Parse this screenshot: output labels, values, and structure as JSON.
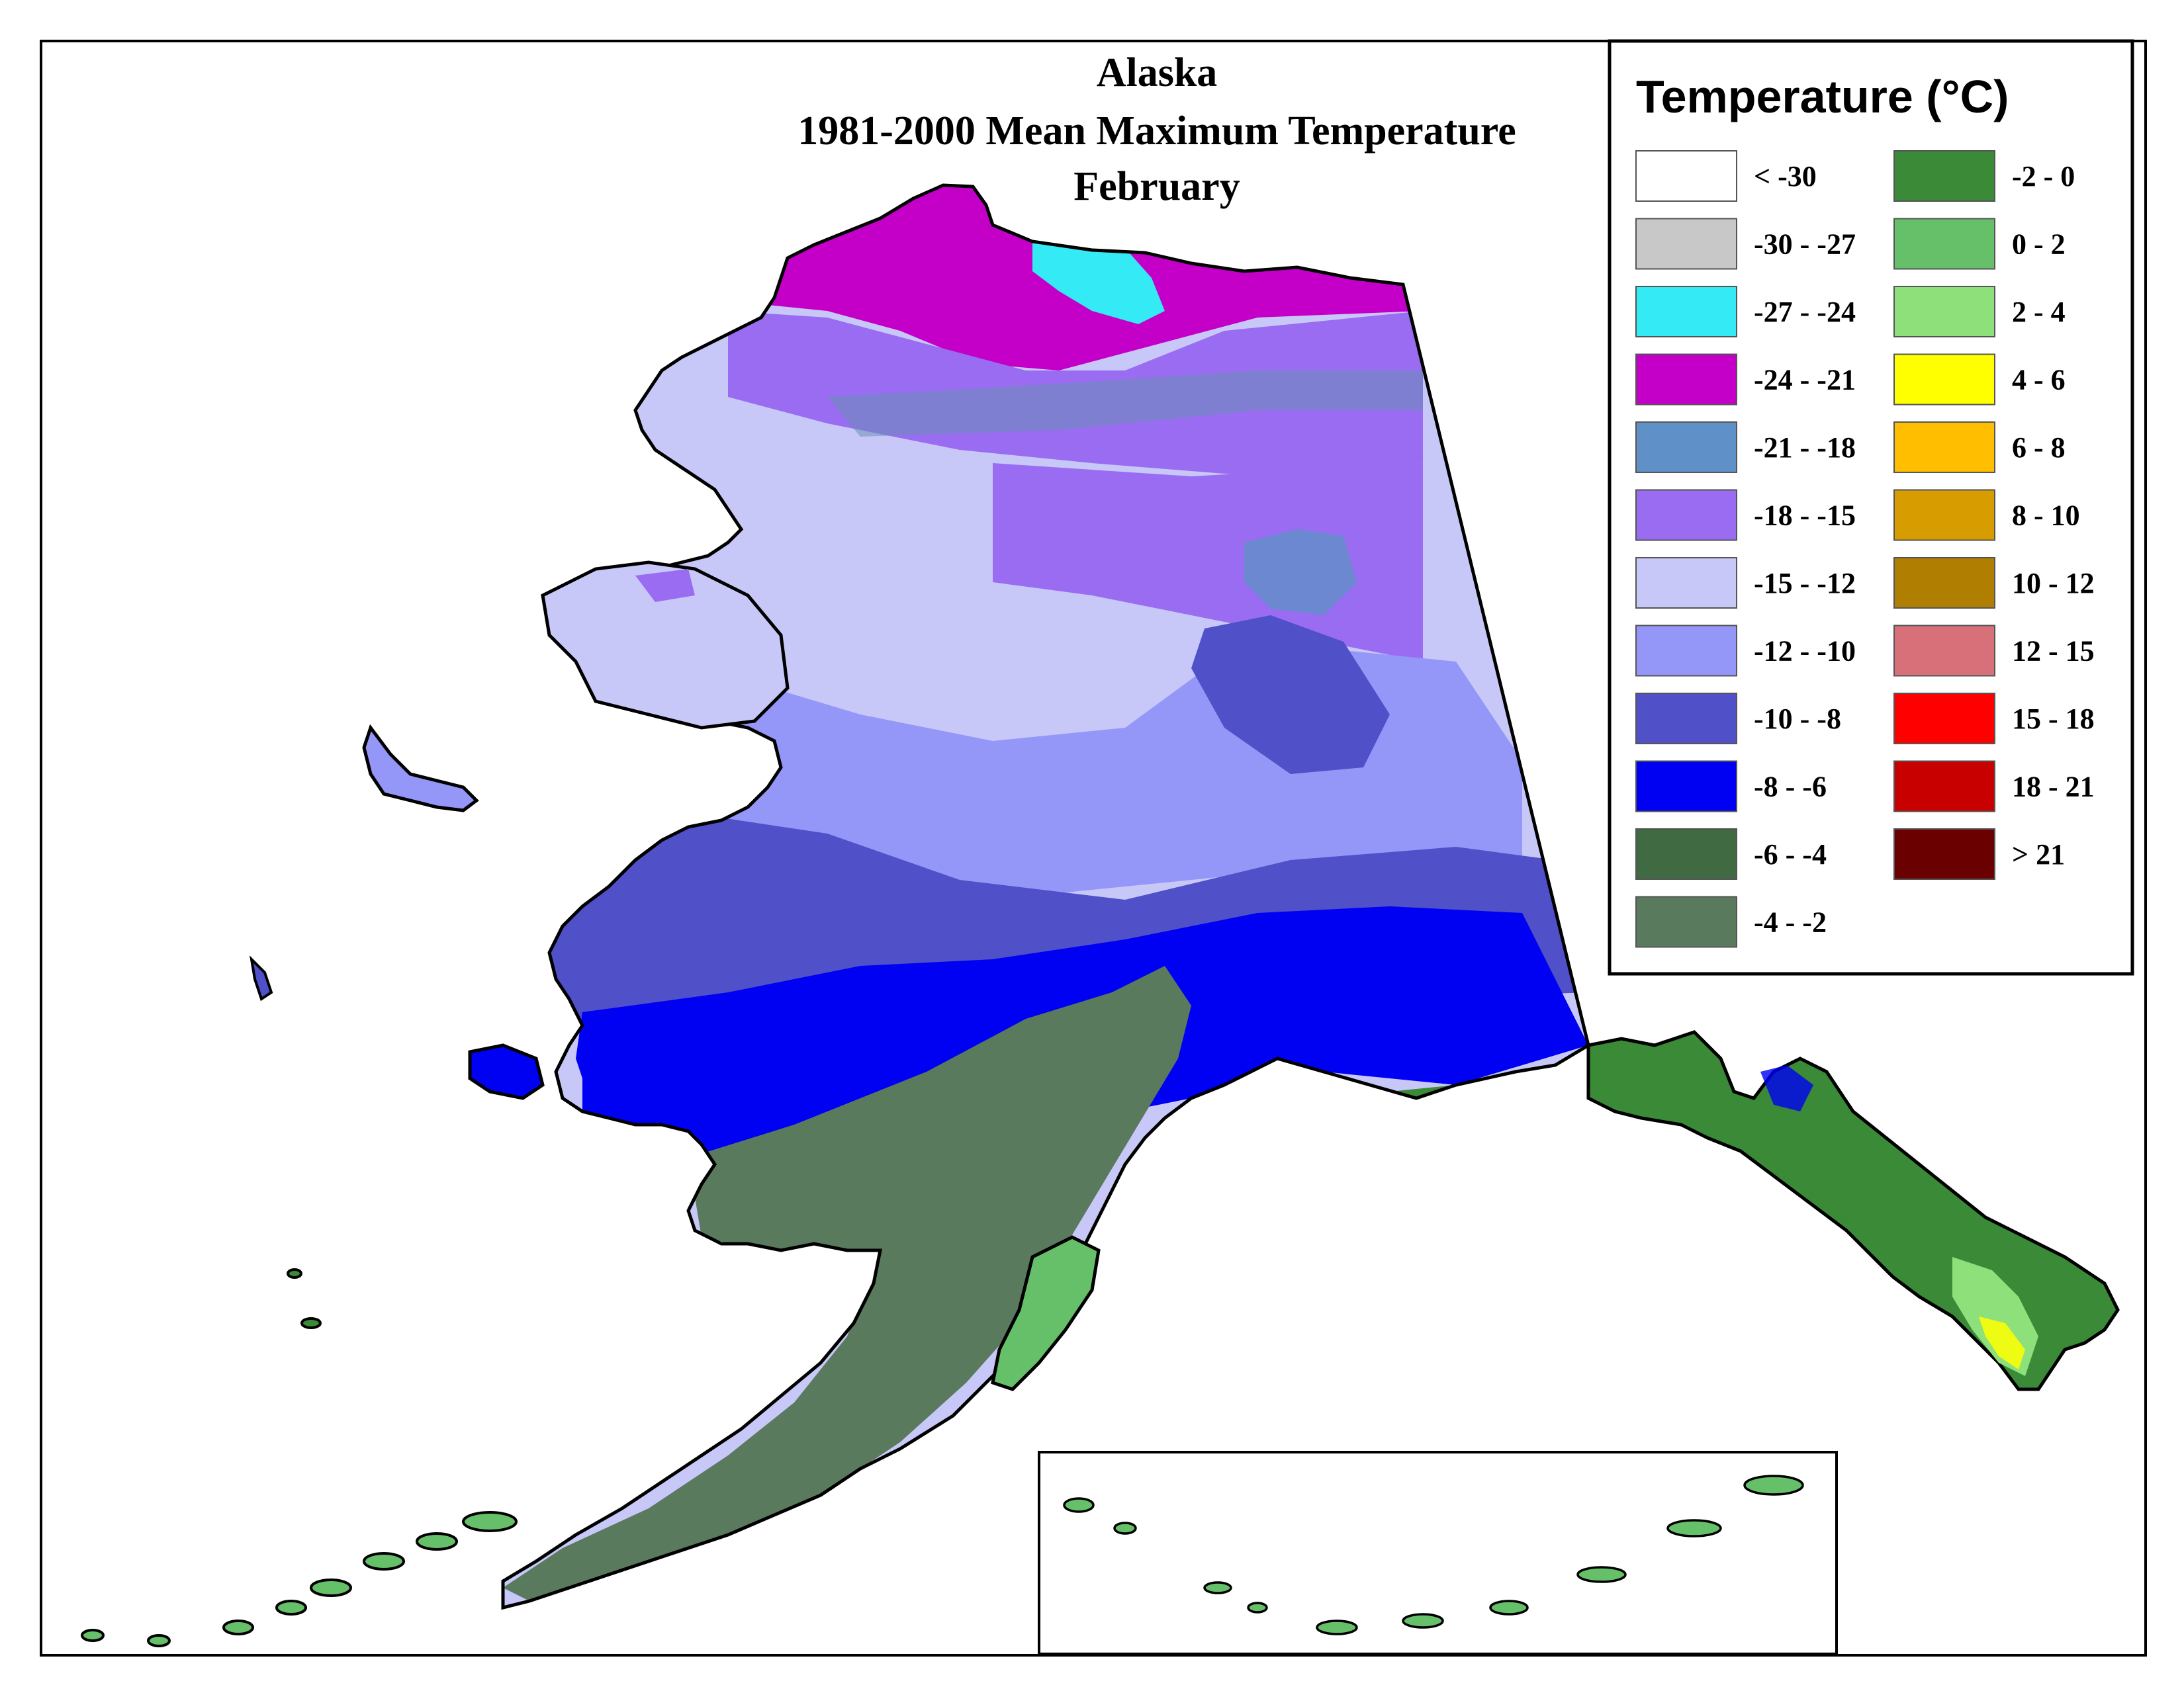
{
  "map": {
    "title_lines": [
      "Alaska",
      "1981-2000 Mean Maximum Temperature",
      "February"
    ]
  },
  "legend": {
    "title": "Temperature (°C)",
    "classes": [
      {
        "label": "< -30",
        "color": "#ffffff"
      },
      {
        "label": "-30 - -27",
        "color": "#c8c8c8"
      },
      {
        "label": "-27 - -24",
        "color": "#33eaf5"
      },
      {
        "label": "-24 - -21",
        "color": "#c400c8"
      },
      {
        "label": "-21 - -18",
        "color": "#6090c8"
      },
      {
        "label": "-18 - -15",
        "color": "#9a6cf2"
      },
      {
        "label": "-15 - -12",
        "color": "#c8c8f8"
      },
      {
        "label": "-12 - -10",
        "color": "#9496f8"
      },
      {
        "label": "-10 - -8",
        "color": "#5050c8"
      },
      {
        "label": "-8 - -6",
        "color": "#0000f2"
      },
      {
        "label": "-6 - -4",
        "color": "#3f6a42"
      },
      {
        "label": "-4 - -2",
        "color": "#5a7a5e"
      },
      {
        "label": "-2 - 0",
        "color": "#3a8a38"
      },
      {
        "label": "0 - 2",
        "color": "#66c06a"
      },
      {
        "label": "2 - 4",
        "color": "#8ee07a"
      },
      {
        "label": "4 - 6",
        "color": "#ffff00"
      },
      {
        "label": "6 - 8",
        "color": "#ffbf00"
      },
      {
        "label": "8 - 10",
        "color": "#d79c00"
      },
      {
        "label": "10 - 12",
        "color": "#b07e00"
      },
      {
        "label": "12 - 15",
        "color": "#d8707a"
      },
      {
        "label": "15 - 18",
        "color": "#ff0000"
      },
      {
        "label": "18 - 21",
        "color": "#c80000"
      },
      {
        "label": "> 21",
        "color": "#6a0000"
      }
    ]
  }
}
